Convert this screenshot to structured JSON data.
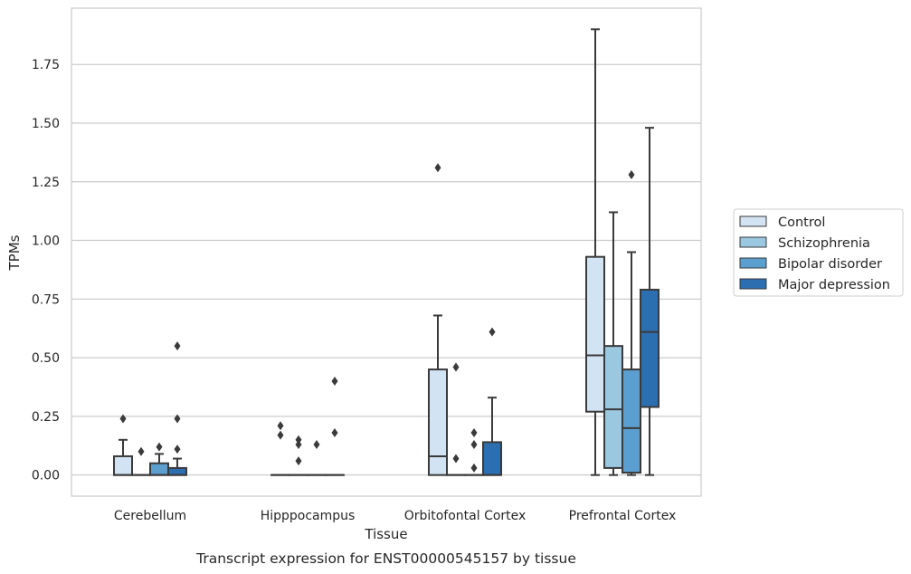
{
  "caption": "Transcript expression for ENST00000545157 by tissue",
  "chart_data": {
    "type": "box",
    "title": "",
    "xlabel": "Tissue",
    "ylabel": "TPMs",
    "ylim": [
      -0.09,
      1.99
    ],
    "yticks": [
      "0.00",
      "0.25",
      "0.50",
      "0.75",
      "1.00",
      "1.25",
      "1.50",
      "1.75"
    ],
    "grid": "horizontal",
    "legend_position": "right",
    "categories": [
      "Cerebellum",
      "Hipppocampus",
      "Orbitofontal Cortex",
      "Prefrontal Cortex"
    ],
    "series": [
      {
        "name": "Control",
        "color": "#d2e3f3",
        "boxes": [
          {
            "q1": 0.0,
            "median": 0.0,
            "q3": 0.08,
            "whislo": 0.0,
            "whishi": 0.15,
            "fliers": [
              0.24
            ]
          },
          {
            "q1": 0.0,
            "median": 0.0,
            "q3": 0.0,
            "whislo": 0.0,
            "whishi": 0.0,
            "fliers": [
              0.17,
              0.21
            ]
          },
          {
            "q1": 0.0,
            "median": 0.08,
            "q3": 0.45,
            "whislo": 0.0,
            "whishi": 0.68,
            "fliers": [
              1.31
            ]
          },
          {
            "q1": 0.27,
            "median": 0.51,
            "q3": 0.93,
            "whislo": 0.0,
            "whishi": 1.9,
            "fliers": []
          }
        ]
      },
      {
        "name": "Schizophrenia",
        "color": "#9ac8e0",
        "boxes": [
          {
            "q1": 0.0,
            "median": 0.0,
            "q3": 0.0,
            "whislo": 0.0,
            "whishi": 0.0,
            "fliers": [
              0.1
            ]
          },
          {
            "q1": 0.0,
            "median": 0.0,
            "q3": 0.0,
            "whislo": 0.0,
            "whishi": 0.0,
            "fliers": [
              0.06,
              0.13,
              0.15
            ]
          },
          {
            "q1": 0.0,
            "median": 0.0,
            "q3": 0.0,
            "whislo": 0.0,
            "whishi": 0.0,
            "fliers": [
              0.07,
              0.46
            ]
          },
          {
            "q1": 0.03,
            "median": 0.28,
            "q3": 0.55,
            "whislo": 0.0,
            "whishi": 1.12,
            "fliers": []
          }
        ]
      },
      {
        "name": "Bipolar disorder",
        "color": "#5a9fcf",
        "boxes": [
          {
            "q1": 0.0,
            "median": 0.0,
            "q3": 0.05,
            "whislo": 0.0,
            "whishi": 0.09,
            "fliers": [
              0.12
            ]
          },
          {
            "q1": 0.0,
            "median": 0.0,
            "q3": 0.0,
            "whislo": 0.0,
            "whishi": 0.0,
            "fliers": [
              0.13
            ]
          },
          {
            "q1": 0.0,
            "median": 0.0,
            "q3": 0.0,
            "whislo": 0.0,
            "whishi": 0.0,
            "fliers": [
              0.03,
              0.13,
              0.18
            ]
          },
          {
            "q1": 0.01,
            "median": 0.2,
            "q3": 0.45,
            "whislo": 0.0,
            "whishi": 0.95,
            "fliers": [
              1.28
            ]
          }
        ]
      },
      {
        "name": "Major depression",
        "color": "#2c6fb0",
        "boxes": [
          {
            "q1": 0.0,
            "median": 0.0,
            "q3": 0.03,
            "whislo": 0.0,
            "whishi": 0.07,
            "fliers": [
              0.11,
              0.24,
              0.55
            ]
          },
          {
            "q1": 0.0,
            "median": 0.0,
            "q3": 0.0,
            "whislo": 0.0,
            "whishi": 0.0,
            "fliers": [
              0.18,
              0.4
            ]
          },
          {
            "q1": 0.0,
            "median": 0.0,
            "q3": 0.14,
            "whislo": 0.0,
            "whishi": 0.33,
            "fliers": [
              0.61
            ]
          },
          {
            "q1": 0.29,
            "median": 0.61,
            "q3": 0.79,
            "whislo": 0.0,
            "whishi": 1.48,
            "fliers": []
          }
        ]
      }
    ]
  }
}
